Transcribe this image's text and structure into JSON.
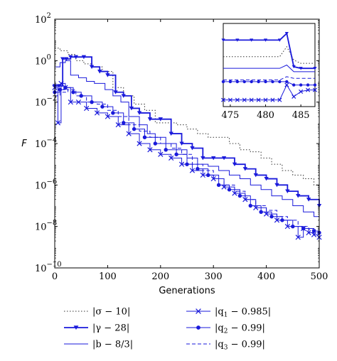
{
  "chart_data": {
    "type": "line",
    "xlabel": "Generations",
    "ylabel": "F",
    "xlim": [
      0,
      500
    ],
    "ylim": [
      1e-10,
      100
    ],
    "yscale": "log",
    "xticks": [
      0,
      100,
      200,
      300,
      400,
      500
    ],
    "yticks": [
      {
        "base": "10",
        "exp": "2",
        "value": 100
      },
      {
        "base": "10",
        "exp": "0",
        "value": 1
      },
      {
        "base": "10",
        "exp": "−2",
        "value": 0.01
      },
      {
        "base": "10",
        "exp": "−4",
        "value": 0.0001
      },
      {
        "base": "10",
        "exp": "−6",
        "value": 1e-06
      },
      {
        "base": "10",
        "exp": "−8",
        "value": 1e-08
      },
      {
        "base": "10",
        "exp": "−10",
        "value": 1e-10
      }
    ],
    "inset": {
      "xlim": [
        474,
        487
      ],
      "xticks": [
        475,
        480,
        485
      ],
      "series": [
        {
          "id": "sigma",
          "x": [
            474,
            476,
            478,
            480,
            482,
            483,
            484,
            485,
            487
          ],
          "y": [
            3.0,
            3.0,
            3.0,
            3.0,
            3.0,
            3.6,
            2.8,
            2.6,
            2.6
          ]
        },
        {
          "id": "gamma",
          "x": [
            474,
            476,
            478,
            480,
            482,
            483,
            484,
            485,
            487
          ],
          "y": [
            4.0,
            4.0,
            4.0,
            4.0,
            4.0,
            4.4,
            2.4,
            2.3,
            2.3
          ]
        },
        {
          "id": "b",
          "x": [
            474,
            476,
            478,
            480,
            482,
            483,
            484,
            485,
            487
          ],
          "y": [
            2.3,
            2.3,
            2.3,
            2.3,
            2.3,
            2.5,
            2.1,
            2.1,
            2.1
          ]
        },
        {
          "id": "q1",
          "x": [
            474,
            475,
            476,
            477,
            478,
            479,
            480,
            481,
            482,
            483,
            484,
            485,
            486,
            487
          ],
          "y": [
            0.4,
            0.4,
            0.4,
            0.4,
            0.4,
            0.4,
            0.4,
            0.4,
            0.4,
            1.3,
            0.6,
            0.9,
            1.0,
            1.0
          ]
        },
        {
          "id": "q2",
          "x": [
            474,
            475,
            476,
            477,
            478,
            479,
            480,
            481,
            482,
            483,
            484,
            485,
            486,
            487
          ],
          "y": [
            1.5,
            1.5,
            1.5,
            1.5,
            1.5,
            1.5,
            1.5,
            1.5,
            1.5,
            1.5,
            1.3,
            1.3,
            1.3,
            1.3
          ]
        },
        {
          "id": "q3",
          "x": [
            474,
            476,
            478,
            480,
            482,
            483,
            484,
            485,
            487
          ],
          "y": [
            1.6,
            1.6,
            1.6,
            1.6,
            1.6,
            1.8,
            1.7,
            1.7,
            1.7
          ]
        }
      ]
    },
    "series": [
      {
        "id": "sigma",
        "name": "|σ − 10|",
        "style": "dotted",
        "marker": "none",
        "x": [
          0,
          10,
          25,
          40,
          55,
          70,
          90,
          110,
          130,
          150,
          170,
          190,
          210,
          230,
          250,
          270,
          290,
          310,
          330,
          350,
          370,
          390,
          410,
          430,
          450,
          470,
          490,
          500
        ],
        "y": [
          4,
          3,
          2,
          1,
          0.7,
          0.5,
          0.3,
          0.05,
          0.02,
          0.008,
          0.004,
          0.001,
          0.001,
          0.0008,
          0.0005,
          0.0003,
          0.0002,
          0.0002,
          0.0001,
          5e-05,
          4e-05,
          2e-05,
          1e-05,
          5e-06,
          3e-06,
          2e-06,
          1e-06,
          1e-06
        ]
      },
      {
        "id": "gamma",
        "name": "|γ − 28|",
        "style": "solid-thick",
        "marker": "triangle-down",
        "x": [
          0,
          8,
          15,
          22,
          30,
          40,
          55,
          70,
          85,
          100,
          115,
          130,
          145,
          160,
          180,
          200,
          220,
          240,
          260,
          280,
          300,
          320,
          340,
          360,
          380,
          400,
          420,
          440,
          460,
          480,
          500
        ],
        "y": [
          0.06,
          0.06,
          1.2,
          1.2,
          1.5,
          1.5,
          1.5,
          0.5,
          0.3,
          0.2,
          0.03,
          0.02,
          0.005,
          0.003,
          0.0015,
          0.0015,
          0.0003,
          0.0001,
          6e-05,
          2e-05,
          2e-05,
          2e-05,
          1e-05,
          6e-06,
          3e-06,
          2e-06,
          1e-06,
          5e-07,
          3e-07,
          2e-07,
          1e-07
        ]
      },
      {
        "id": "b",
        "name": "|b − 8/3|",
        "style": "solid",
        "marker": "none",
        "x": [
          0,
          10,
          20,
          30,
          45,
          60,
          75,
          95,
          110,
          125,
          140,
          160,
          175,
          190,
          210,
          230,
          250,
          270,
          290,
          310,
          330,
          350,
          370,
          390,
          410,
          430,
          450,
          470,
          490,
          500
        ],
        "y": [
          0.5,
          0.8,
          1.0,
          0.2,
          0.15,
          0.1,
          0.08,
          0.04,
          0.02,
          0.01,
          0.002,
          0.0008,
          0.0003,
          0.0002,
          0.0001,
          5e-05,
          2e-05,
          1e-05,
          8e-06,
          5e-06,
          3e-06,
          2e-06,
          1e-06,
          6e-07,
          3e-07,
          2e-07,
          1e-07,
          5e-08,
          3e-08,
          2e-08
        ]
      },
      {
        "id": "q1",
        "name": "|q1 − 0.985|",
        "style": "solid",
        "marker": "x",
        "x": [
          0,
          6,
          12,
          20,
          30,
          45,
          60,
          80,
          100,
          120,
          140,
          160,
          180,
          200,
          220,
          240,
          260,
          280,
          300,
          320,
          340,
          360,
          380,
          400,
          420,
          440,
          460,
          470,
          480,
          490,
          500
        ],
        "y": [
          0.05,
          0.001,
          0.08,
          0.05,
          0.01,
          0.01,
          0.005,
          0.003,
          0.002,
          0.0008,
          0.0003,
          0.0001,
          5e-05,
          3e-05,
          2e-05,
          1e-05,
          5e-06,
          3e-06,
          2e-06,
          8e-07,
          4e-07,
          2e-07,
          8e-08,
          4e-08,
          2e-08,
          1e-08,
          3e-09,
          8e-09,
          5e-09,
          4e-09,
          3e-09
        ]
      },
      {
        "id": "q2",
        "name": "|q2 − 0.99|",
        "style": "solid",
        "marker": "circle",
        "x": [
          0,
          10,
          20,
          35,
          50,
          70,
          90,
          110,
          130,
          150,
          170,
          190,
          210,
          230,
          250,
          270,
          290,
          310,
          330,
          350,
          370,
          390,
          410,
          430,
          450,
          470,
          490,
          500
        ],
        "y": [
          0.03,
          0.04,
          0.05,
          0.03,
          0.02,
          0.01,
          0.006,
          0.003,
          0.001,
          0.0005,
          0.0002,
          0.0001,
          5e-05,
          3e-05,
          1e-05,
          6e-06,
          3e-06,
          1e-06,
          6e-07,
          3e-07,
          1e-07,
          5e-08,
          3e-08,
          2e-08,
          1e-08,
          8e-09,
          6e-09,
          5e-09
        ]
      },
      {
        "id": "q3",
        "name": "|q3 − 0.99|",
        "style": "dashed",
        "marker": "none",
        "x": [
          0,
          10,
          25,
          40,
          60,
          80,
          100,
          120,
          140,
          160,
          180,
          200,
          220,
          240,
          260,
          280,
          300,
          320,
          340,
          360,
          380,
          400,
          420,
          440,
          460,
          480,
          500
        ],
        "y": [
          0.02,
          0.03,
          0.04,
          0.02,
          0.01,
          0.008,
          0.004,
          0.002,
          0.0008,
          0.0004,
          0.0002,
          0.0001,
          6e-05,
          3e-05,
          1e-05,
          5e-06,
          2e-06,
          1e-06,
          5e-07,
          2e-07,
          1e-07,
          6e-08,
          3e-08,
          2e-08,
          1e-08,
          7e-09,
          5e-09
        ]
      }
    ],
    "legend": [
      {
        "id": "sigma",
        "label_base": "|σ − 10|",
        "sub": ""
      },
      {
        "id": "gamma",
        "label_base": "|γ − 28|",
        "sub": ""
      },
      {
        "id": "b",
        "label_base": "|b − 8/3|",
        "sub": ""
      },
      {
        "id": "q1",
        "label_pre": "|q",
        "sub": "1",
        "label_post": " − 0.985|"
      },
      {
        "id": "q2",
        "label_pre": "|q",
        "sub": "2",
        "label_post": " − 0.99|"
      },
      {
        "id": "q3",
        "label_pre": "|q",
        "sub": "3",
        "label_post": " − 0.99|"
      }
    ],
    "colors": {
      "series": "#1a1adb",
      "axes": "#000000"
    }
  }
}
